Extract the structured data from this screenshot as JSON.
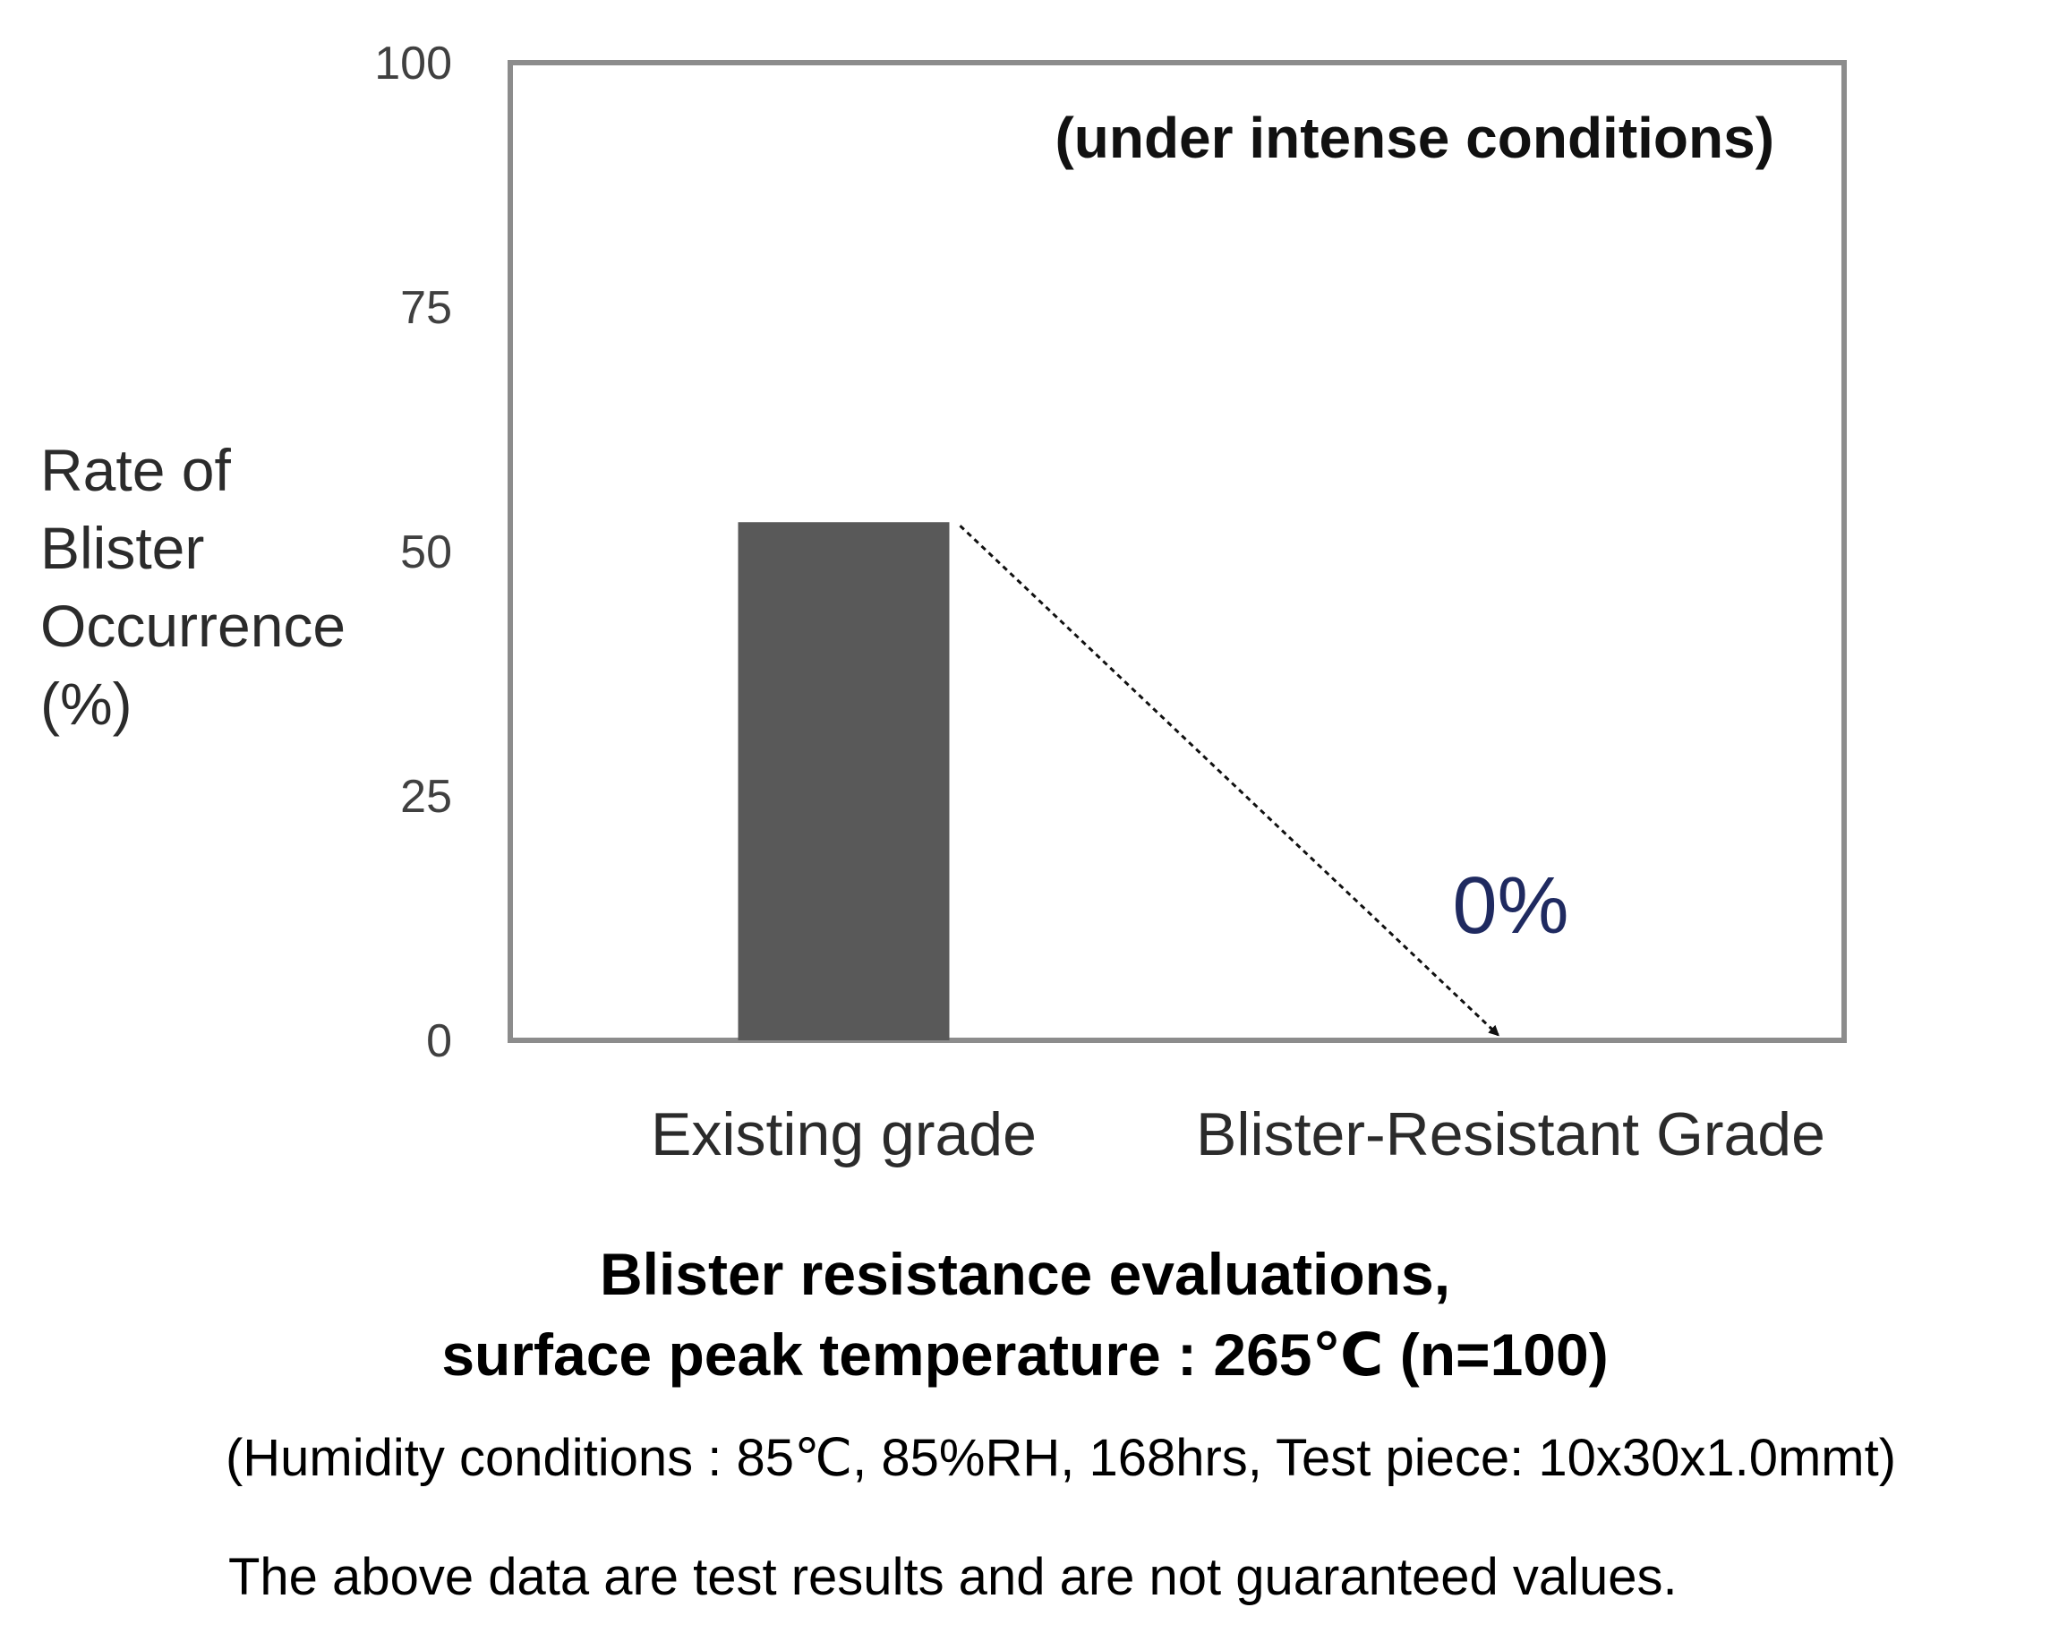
{
  "chart_data": {
    "type": "bar",
    "categories": [
      "Existing grade",
      "Blister-Resistant Grade"
    ],
    "values": [
      53,
      0
    ],
    "ylabel_lines": [
      "Rate of",
      "Blister",
      "Occurrence",
      "(%)"
    ],
    "ylim": [
      0,
      100
    ],
    "yticks": [
      0,
      25,
      50,
      75,
      100
    ],
    "grid": false,
    "annotation": "(under intense conditions)",
    "data_labels": [
      "",
      "0%"
    ],
    "bar_color": "#595959",
    "data_label_color": "#1f2a60",
    "arrow": "dotted arrow from top of Existing grade bar down to Blister-Resistant Grade at 0"
  },
  "caption": {
    "title_line1": "Blister resistance evaluations,",
    "title_line2": "surface peak temperature : 265℃ (n=100)",
    "conditions": "(Humidity conditions : 85℃, 85%RH, 168hrs, Test piece: 10x30x1.0mmt)",
    "disclaimer": "The above data are test results and are not guaranteed values."
  }
}
